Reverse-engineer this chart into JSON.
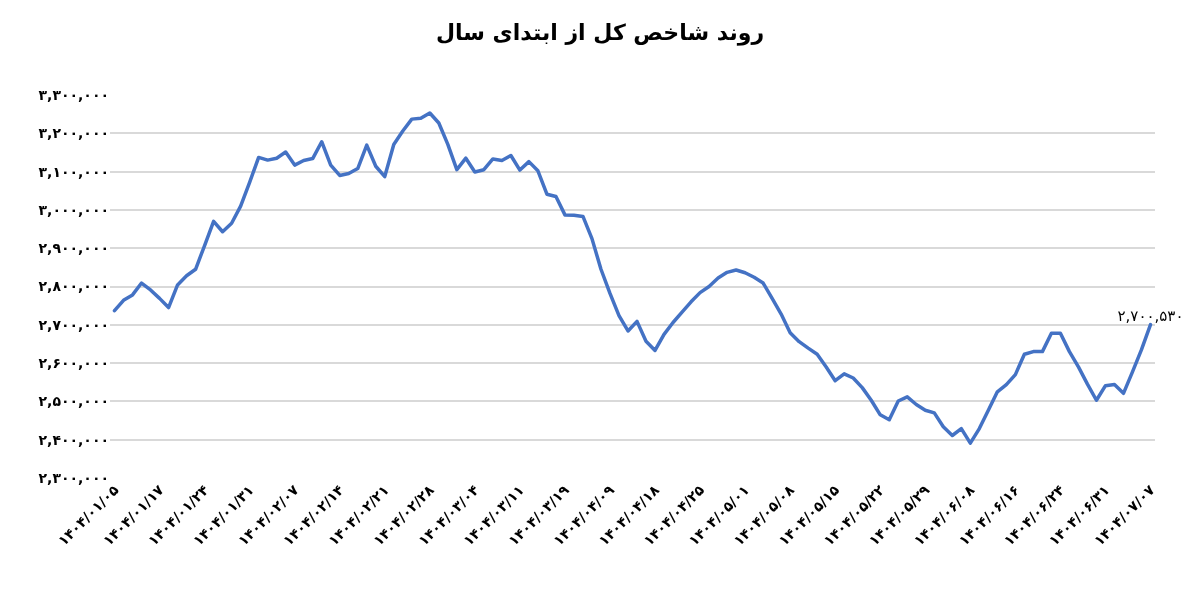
{
  "chart_data": {
    "type": "line",
    "title": "روند شاخص کل از ابتدای سال",
    "categories": [
      "۱۴۰۴/۰۱/۰۵",
      null,
      null,
      null,
      null,
      "۱۴۰۴/۰۱/۱۷",
      null,
      null,
      null,
      null,
      "۱۴۰۴/۰۱/۲۴",
      null,
      null,
      null,
      null,
      "۱۴۰۴/۰۱/۳۱",
      null,
      null,
      null,
      null,
      "۱۴۰۴/۰۲/۰۷",
      null,
      null,
      null,
      null,
      "۱۴۰۴/۰۲/۱۴",
      null,
      null,
      null,
      null,
      "۱۴۰۴/۰۲/۲۱",
      null,
      null,
      null,
      null,
      "۱۴۰۴/۰۲/۲۸",
      null,
      null,
      null,
      null,
      "۱۴۰۴/۰۳/۰۴",
      null,
      null,
      null,
      null,
      "۱۴۰۴/۰۳/۱۱",
      null,
      null,
      null,
      null,
      "۱۴۰۴/۰۳/۱۹",
      null,
      null,
      null,
      null,
      "۱۴۰۴/۰۴/۰۹",
      null,
      null,
      null,
      null,
      "۱۴۰۴/۰۴/۱۸",
      null,
      null,
      null,
      null,
      "۱۴۰۴/۰۴/۲۵",
      null,
      null,
      null,
      null,
      "۱۴۰۴/۰۵/۰۱",
      null,
      null,
      null,
      null,
      "۱۴۰۴/۰۵/۰۸",
      null,
      null,
      null,
      null,
      "۱۴۰۴/۰۵/۱۵",
      null,
      null,
      null,
      null,
      "۱۴۰۴/۰۵/۲۲",
      null,
      null,
      null,
      null,
      "۱۴۰۴/۰۵/۲۹",
      null,
      null,
      null,
      null,
      "۱۴۰۴/۰۶/۰۸",
      null,
      null,
      null,
      null,
      "۱۴۰۴/۰۶/۱۶",
      null,
      null,
      null,
      null,
      "۱۴۰۴/۰۶/۲۴",
      null,
      null,
      null,
      null,
      "۱۴۰۴/۰۶/۳۱",
      null,
      null,
      null,
      null,
      "۱۴۰۴/۰۷/۰۷"
    ],
    "series": [
      {
        "color": "#4472c4",
        "values": [
          2737000,
          2764000,
          2778000,
          2809000,
          2791000,
          2769000,
          2745000,
          2804000,
          2828000,
          2845000,
          2907000,
          2970000,
          2943000,
          2965000,
          3010000,
          3072000,
          3137000,
          3130000,
          3135000,
          3151000,
          3117000,
          3129000,
          3134000,
          3178000,
          3117000,
          3090000,
          3095000,
          3108000,
          3169000,
          3114000,
          3087000,
          3171000,
          3206000,
          3237000,
          3239000,
          3253000,
          3227000,
          3171000,
          3105000,
          3135000,
          3099000,
          3105000,
          3133000,
          3129000,
          3142000,
          3104000,
          3126000,
          3102000,
          3041000,
          3035000,
          2987000,
          2986000,
          2983000,
          2925000,
          2845000,
          2782000,
          2724000,
          2684000,
          2709000,
          2657000,
          2633000,
          2675000,
          2706000,
          2733000,
          2760000,
          2784000,
          2800000,
          2822000,
          2837000,
          2843000,
          2836000,
          2824000,
          2809000,
          2769000,
          2728000,
          2679000,
          2656000,
          2639000,
          2623000,
          2590000,
          2554000,
          2572000,
          2561000,
          2536000,
          2503000,
          2465000,
          2452000,
          2501000,
          2512000,
          2492000,
          2477000,
          2470000,
          2434000,
          2411000,
          2429000,
          2391000,
          2429000,
          2477000,
          2525000,
          2544000,
          2570000,
          2623000,
          2630000,
          2630000,
          2678000,
          2678000,
          2630000,
          2590000,
          2545000,
          2503000,
          2541000,
          2544000,
          2521000,
          2577000,
          2635000,
          2700530
        ],
        "value_labels": [
          null,
          null,
          null,
          null,
          null,
          null,
          null,
          null,
          null,
          null,
          null,
          null,
          null,
          null,
          null,
          null,
          null,
          null,
          null,
          null,
          null,
          null,
          null,
          null,
          null,
          null,
          null,
          null,
          null,
          null,
          null,
          null,
          null,
          null,
          null,
          null,
          null,
          null,
          null,
          null,
          null,
          null,
          null,
          null,
          null,
          null,
          null,
          null,
          null,
          null,
          null,
          null,
          null,
          null,
          null,
          null,
          null,
          null,
          null,
          null,
          null,
          null,
          null,
          null,
          null,
          null,
          null,
          null,
          null,
          null,
          null,
          null,
          null,
          null,
          null,
          null,
          null,
          null,
          null,
          null,
          null,
          null,
          null,
          null,
          null,
          null,
          null,
          null,
          null,
          null,
          null,
          null,
          null,
          null,
          null,
          null,
          null,
          null,
          null,
          null,
          null,
          null,
          null,
          null,
          null,
          null,
          null,
          null,
          null,
          null,
          null,
          null,
          null,
          null,
          null,
          "۲,۷۰۰,۵۳۰"
        ]
      }
    ],
    "ylim": [
      2300000,
      3300000
    ],
    "yticks": [
      {
        "value": 2300000,
        "label": "۲,۳۰۰,۰۰۰"
      },
      {
        "value": 2400000,
        "label": "۲,۴۰۰,۰۰۰"
      },
      {
        "value": 2500000,
        "label": "۲,۵۰۰,۰۰۰"
      },
      {
        "value": 2600000,
        "label": "۲,۶۰۰,۰۰۰"
      },
      {
        "value": 2700000,
        "label": "۲,۷۰۰,۰۰۰"
      },
      {
        "value": 2800000,
        "label": "۲,۸۰۰,۰۰۰"
      },
      {
        "value": 2900000,
        "label": "۲,۹۰۰,۰۰۰"
      },
      {
        "value": 3000000,
        "label": "۳,۰۰۰,۰۰۰"
      },
      {
        "value": 3100000,
        "label": "۳,۱۰۰,۰۰۰"
      },
      {
        "value": 3200000,
        "label": "۳,۲۰۰,۰۰۰"
      },
      {
        "value": 3300000,
        "label": "۳,۳۰۰,۰۰۰"
      }
    ],
    "grid": "y",
    "marker": "none",
    "line_style": "solid"
  }
}
